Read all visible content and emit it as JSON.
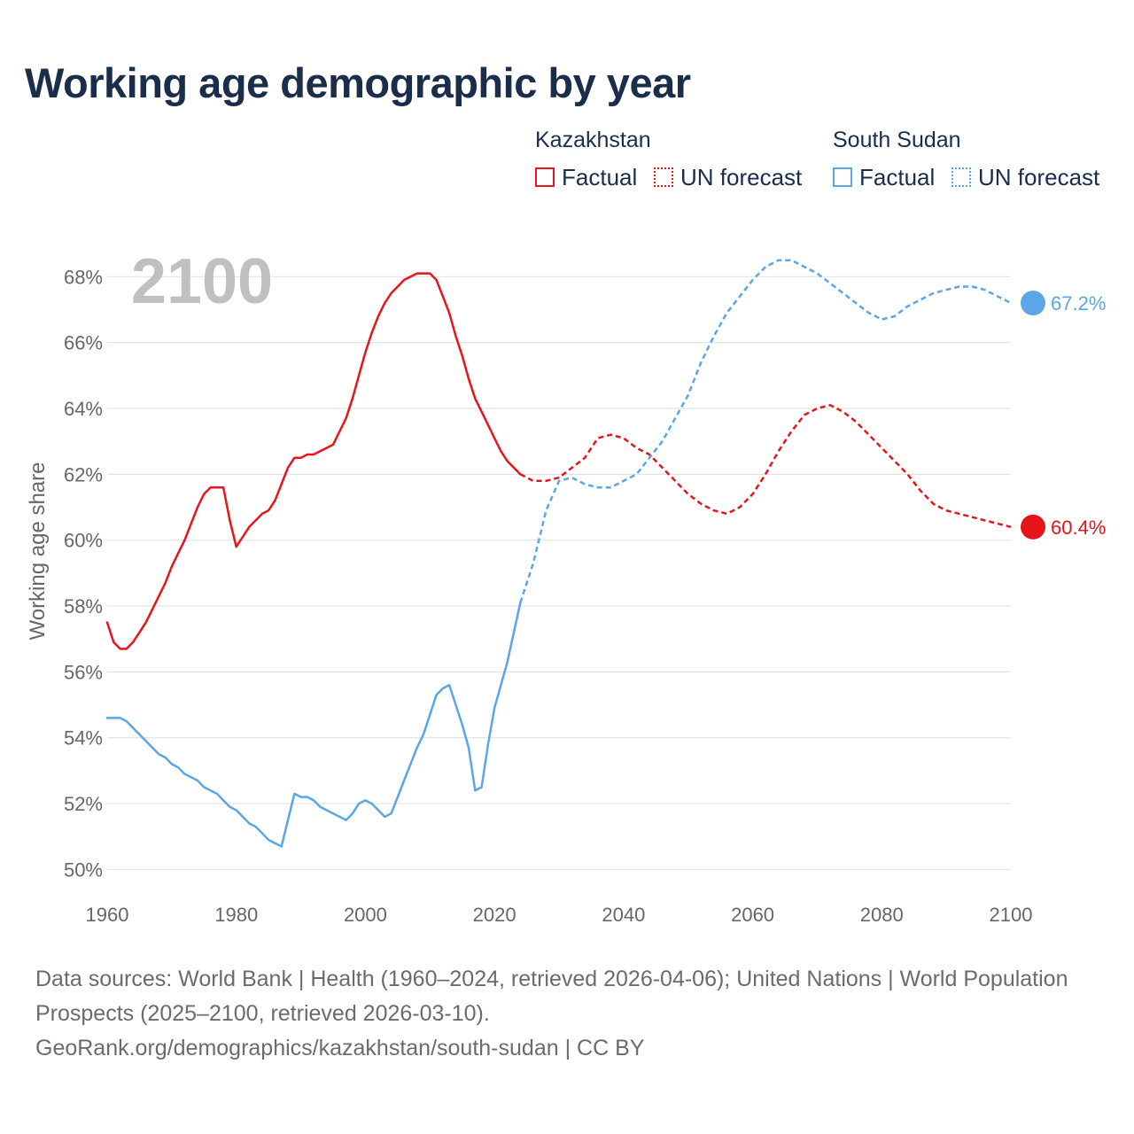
{
  "title": "Working age demographic by year",
  "legend": {
    "groups": [
      {
        "country": "Kazakhstan",
        "color": "#e8141b",
        "factual": "Factual",
        "forecast": "UN forecast"
      },
      {
        "country": "South Sudan",
        "color": "#5aa6e6",
        "factual": "Factual",
        "forecast": "UN forecast"
      }
    ]
  },
  "footer": {
    "sources": "Data sources: World Bank | Health (1960–2024, retrieved 2026-04-06); United Nations | World Population Prospects (2025–2100, retrieved 2026-03-10).",
    "url": "GeoRank.org/demographics/kazakhstan/south-sudan | CC BY"
  },
  "chart_data": {
    "type": "line",
    "current_year": "2100",
    "xlim": [
      1960,
      2100
    ],
    "ylim": [
      49.5,
      68.6
    ],
    "x_ticks": [
      1960,
      1980,
      2000,
      2020,
      2040,
      2060,
      2080,
      2100
    ],
    "x_tick_labels": [
      "1960",
      "1980",
      "2000",
      "2020",
      "2040",
      "2060",
      "2080",
      "2100"
    ],
    "y_ticks": [
      50,
      52,
      54,
      56,
      58,
      60,
      62,
      64,
      66,
      68
    ],
    "y_tick_labels": [
      "50%",
      "52%",
      "54%",
      "56%",
      "58%",
      "60%",
      "62%",
      "64%",
      "66%",
      "68%"
    ],
    "ylabel": "Working age share",
    "xlabel": "",
    "grid": true,
    "series": [
      {
        "name": "Kazakhstan",
        "color": "#e8141b",
        "end_label": "60.4%",
        "factual": {
          "x": [
            1960,
            1961,
            1962,
            1963,
            1964,
            1965,
            1966,
            1967,
            1968,
            1969,
            1970,
            1971,
            1972,
            1973,
            1974,
            1975,
            1976,
            1977,
            1978,
            1979,
            1980,
            1981,
            1982,
            1983,
            1984,
            1985,
            1986,
            1987,
            1988,
            1989,
            1990,
            1991,
            1992,
            1993,
            1994,
            1995,
            1996,
            1997,
            1998,
            1999,
            2000,
            2001,
            2002,
            2003,
            2004,
            2005,
            2006,
            2007,
            2008,
            2009,
            2010,
            2011,
            2012,
            2013,
            2014,
            2015,
            2016,
            2017,
            2018,
            2019,
            2020,
            2021,
            2022,
            2023,
            2024
          ],
          "y": [
            57.5,
            56.9,
            56.7,
            56.7,
            56.9,
            57.2,
            57.5,
            57.9,
            58.3,
            58.7,
            59.2,
            59.6,
            60.0,
            60.5,
            61.0,
            61.4,
            61.6,
            61.6,
            61.6,
            60.6,
            59.8,
            60.1,
            60.4,
            60.6,
            60.8,
            60.9,
            61.2,
            61.7,
            62.2,
            62.5,
            62.5,
            62.6,
            62.6,
            62.7,
            62.8,
            62.9,
            63.3,
            63.7,
            64.3,
            65.0,
            65.7,
            66.3,
            66.8,
            67.2,
            67.5,
            67.7,
            67.9,
            68.0,
            68.1,
            68.1,
            68.1,
            67.9,
            67.4,
            66.9,
            66.2,
            65.6,
            64.9,
            64.3,
            63.9,
            63.5,
            63.1,
            62.7,
            62.4,
            62.2,
            62.0
          ]
        },
        "forecast": {
          "x": [
            2024,
            2026,
            2028,
            2030,
            2032,
            2034,
            2036,
            2038,
            2040,
            2042,
            2044,
            2046,
            2048,
            2050,
            2052,
            2054,
            2056,
            2058,
            2060,
            2062,
            2064,
            2066,
            2068,
            2070,
            2072,
            2074,
            2076,
            2078,
            2080,
            2082,
            2084,
            2086,
            2088,
            2090,
            2092,
            2094,
            2096,
            2098,
            2100
          ],
          "y": [
            62.0,
            61.8,
            61.8,
            61.9,
            62.2,
            62.5,
            63.1,
            63.2,
            63.1,
            62.8,
            62.6,
            62.2,
            61.8,
            61.4,
            61.1,
            60.9,
            60.8,
            61.0,
            61.4,
            62.0,
            62.7,
            63.3,
            63.8,
            64.0,
            64.1,
            63.9,
            63.6,
            63.2,
            62.8,
            62.4,
            62.0,
            61.5,
            61.1,
            60.9,
            60.8,
            60.7,
            60.6,
            60.5,
            60.4
          ]
        }
      },
      {
        "name": "South Sudan",
        "color": "#5aa6e6",
        "end_label": "67.2%",
        "factual": {
          "x": [
            1960,
            1961,
            1962,
            1963,
            1964,
            1965,
            1966,
            1967,
            1968,
            1969,
            1970,
            1971,
            1972,
            1973,
            1974,
            1975,
            1976,
            1977,
            1978,
            1979,
            1980,
            1981,
            1982,
            1983,
            1984,
            1985,
            1986,
            1987,
            1988,
            1989,
            1990,
            1991,
            1992,
            1993,
            1994,
            1995,
            1996,
            1997,
            1998,
            1999,
            2000,
            2001,
            2002,
            2003,
            2004,
            2005,
            2006,
            2007,
            2008,
            2009,
            2010,
            2011,
            2012,
            2013,
            2014,
            2015,
            2016,
            2017,
            2018,
            2019,
            2020,
            2021,
            2022,
            2023,
            2024
          ],
          "y": [
            54.6,
            54.6,
            54.6,
            54.5,
            54.3,
            54.1,
            53.9,
            53.7,
            53.5,
            53.4,
            53.2,
            53.1,
            52.9,
            52.8,
            52.7,
            52.5,
            52.4,
            52.3,
            52.1,
            51.9,
            51.8,
            51.6,
            51.4,
            51.3,
            51.1,
            50.9,
            50.8,
            50.7,
            51.5,
            52.3,
            52.2,
            52.2,
            52.1,
            51.9,
            51.8,
            51.7,
            51.6,
            51.5,
            51.7,
            52.0,
            52.1,
            52.0,
            51.8,
            51.6,
            51.7,
            52.2,
            52.7,
            53.2,
            53.7,
            54.1,
            54.7,
            55.3,
            55.5,
            55.6,
            55.0,
            54.4,
            53.7,
            52.4,
            52.5,
            53.8,
            54.9,
            55.6,
            56.3,
            57.2,
            58.1
          ]
        },
        "forecast": {
          "x": [
            2024,
            2026,
            2028,
            2030,
            2032,
            2034,
            2036,
            2038,
            2040,
            2042,
            2044,
            2046,
            2048,
            2050,
            2052,
            2054,
            2056,
            2058,
            2060,
            2062,
            2064,
            2066,
            2068,
            2070,
            2072,
            2074,
            2076,
            2078,
            2080,
            2082,
            2084,
            2086,
            2088,
            2090,
            2092,
            2094,
            2096,
            2098,
            2100
          ],
          "y": [
            58.1,
            59.3,
            60.9,
            61.8,
            61.9,
            61.7,
            61.6,
            61.6,
            61.8,
            62.0,
            62.5,
            63.0,
            63.7,
            64.4,
            65.4,
            66.2,
            66.9,
            67.4,
            67.9,
            68.3,
            68.5,
            68.5,
            68.3,
            68.1,
            67.8,
            67.5,
            67.2,
            66.9,
            66.7,
            66.8,
            67.1,
            67.3,
            67.5,
            67.6,
            67.7,
            67.7,
            67.6,
            67.4,
            67.2
          ]
        }
      }
    ]
  }
}
